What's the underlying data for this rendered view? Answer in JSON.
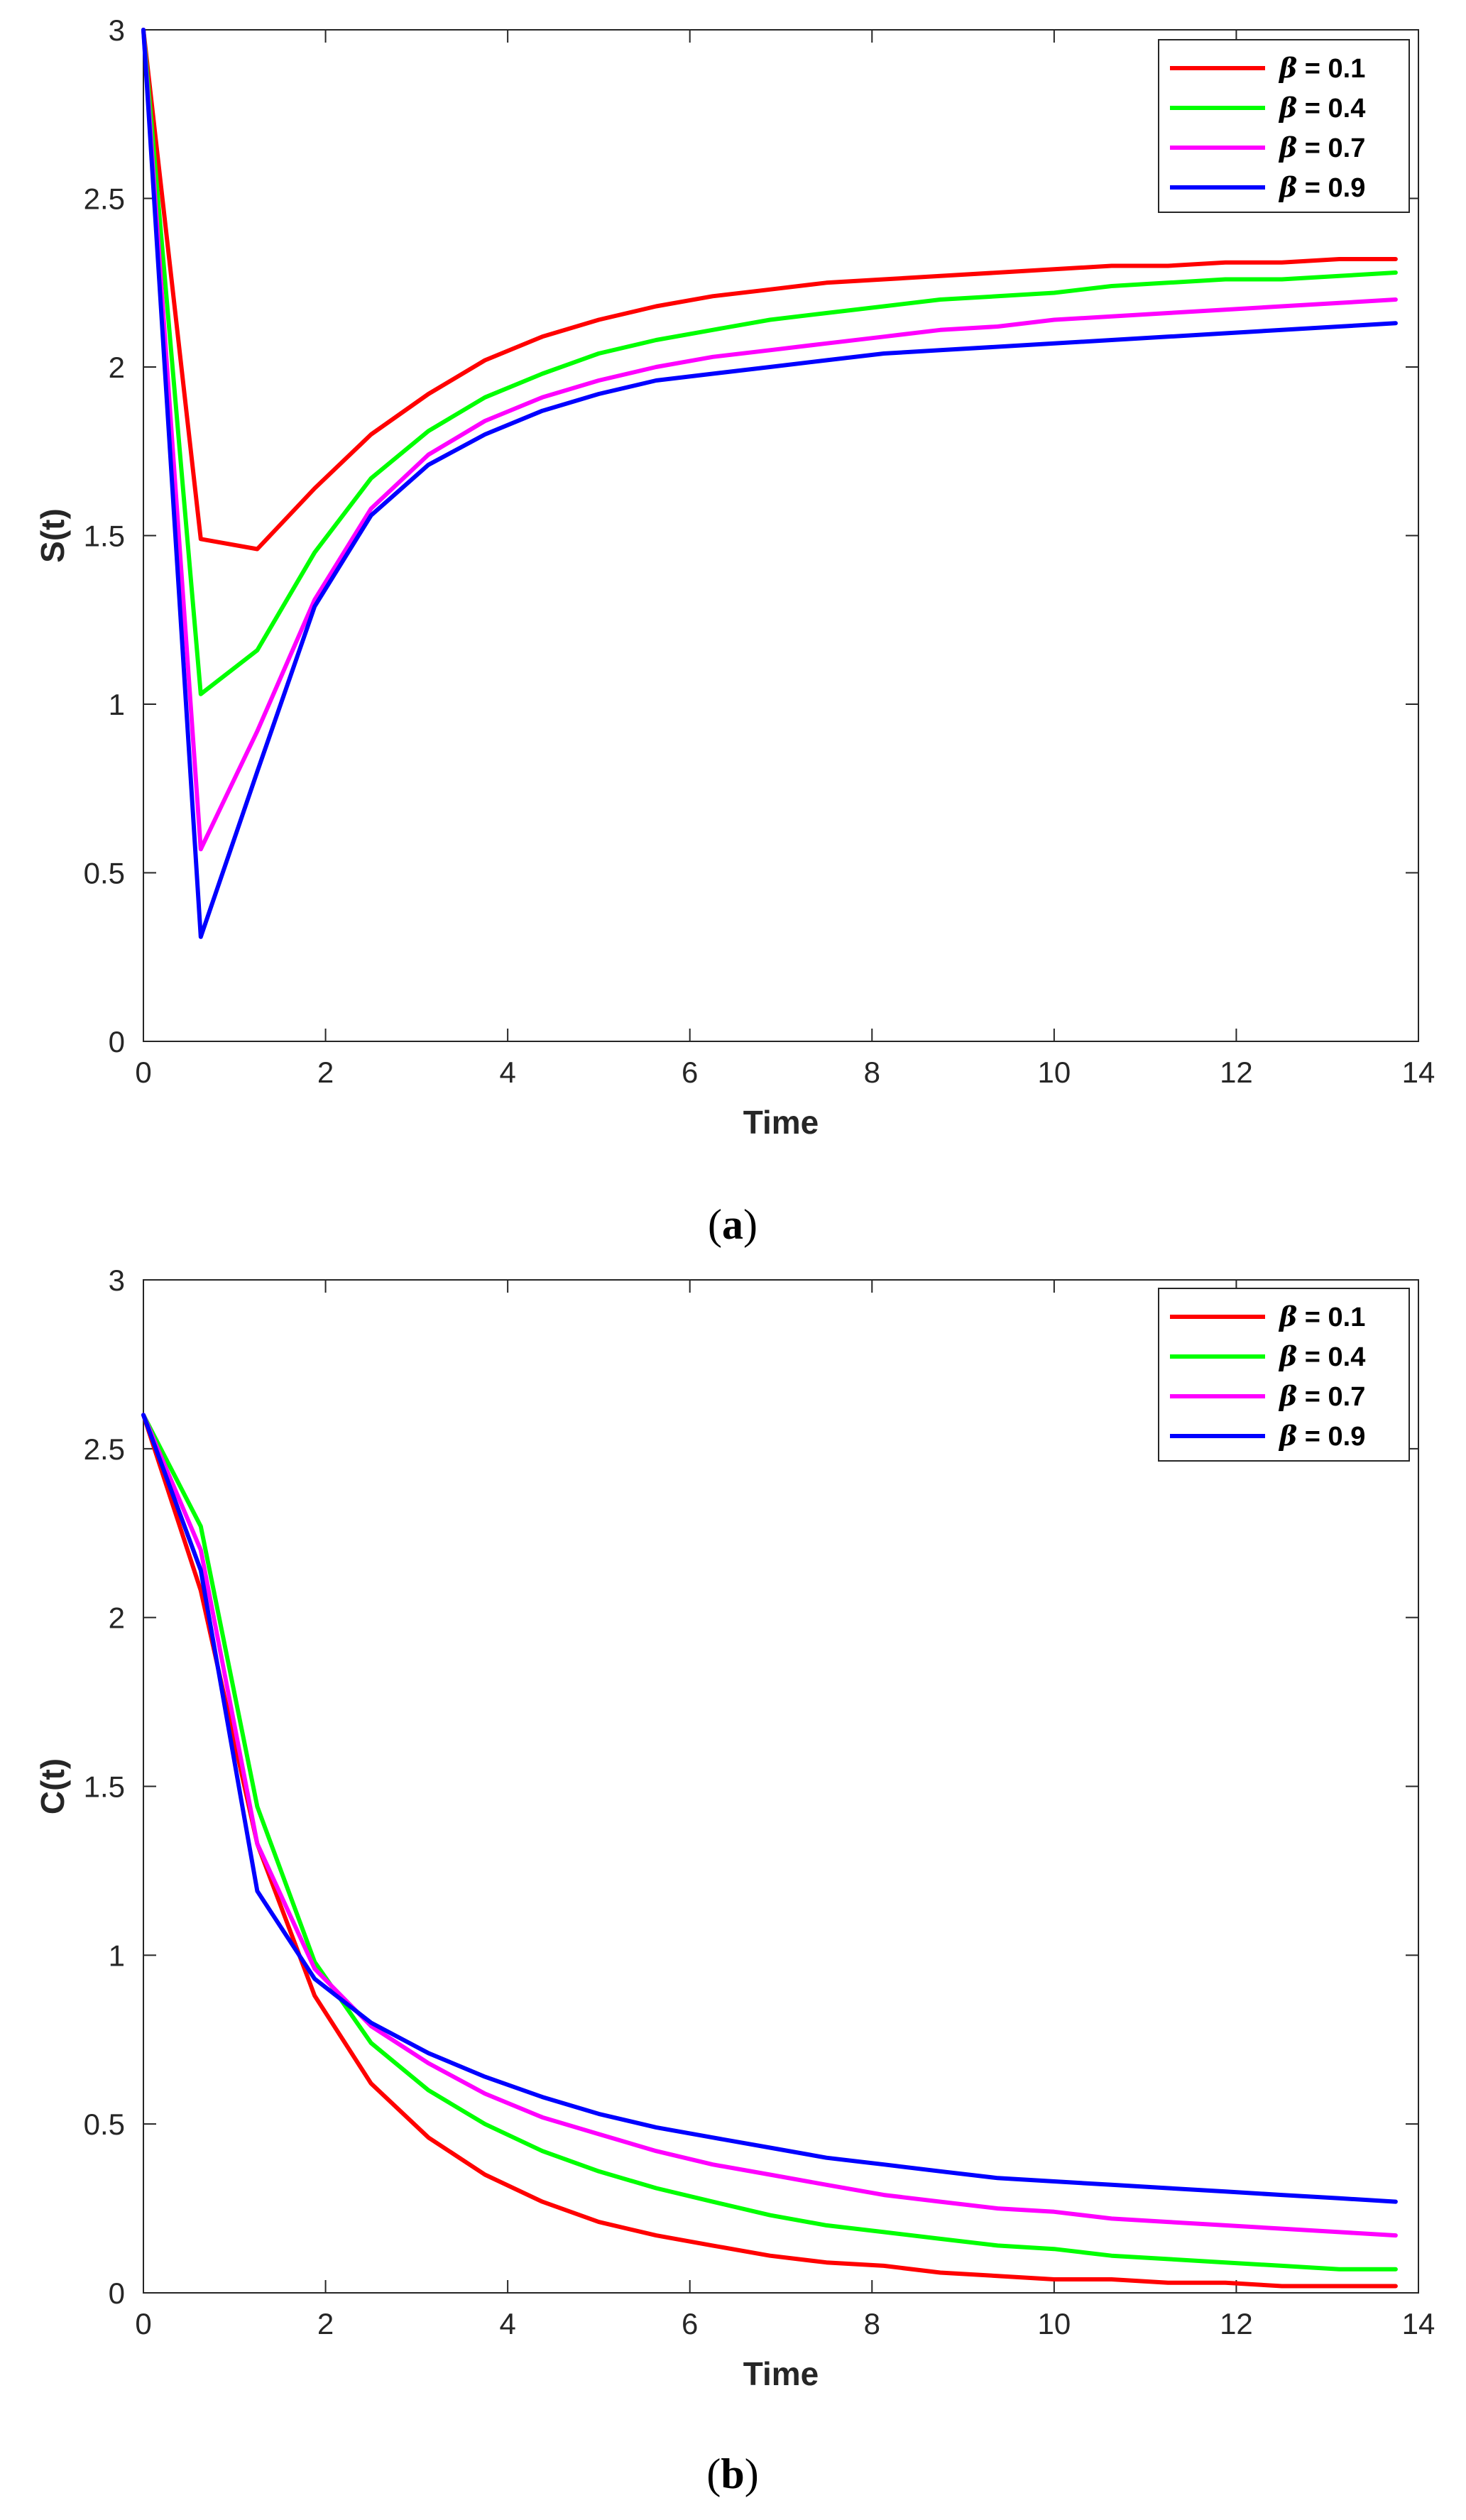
{
  "figure": {
    "captions": [
      {
        "open": "(",
        "letter": "a",
        "close": ")"
      },
      {
        "open": "(",
        "letter": "b",
        "close": ")"
      }
    ]
  },
  "chart_data": [
    {
      "type": "line",
      "panel": "a",
      "title": "",
      "xlabel": "Time",
      "ylabel": "S(t)",
      "xlim": [
        0,
        14
      ],
      "ylim": [
        0,
        3
      ],
      "xticks": [
        0,
        2,
        4,
        6,
        8,
        10,
        12,
        14
      ],
      "yticks": [
        0,
        0.5,
        1,
        1.5,
        2,
        2.5,
        3
      ],
      "xtick_labels": [
        "0",
        "2",
        "4",
        "6",
        "8",
        "10",
        "12",
        "14"
      ],
      "ytick_labels": [
        "0",
        "0.5",
        "1",
        "1.5",
        "2",
        "2.5",
        "3"
      ],
      "grid": false,
      "legend_position": "top-right",
      "x": [
        0,
        0.63,
        1.25,
        1.88,
        2.5,
        3.13,
        3.75,
        4.38,
        5.0,
        5.63,
        6.25,
        6.88,
        7.5,
        8.13,
        8.75,
        9.38,
        10.0,
        10.63,
        11.25,
        11.88,
        12.5,
        13.13,
        13.75
      ],
      "series": [
        {
          "name": "= 0.1",
          "symbol": "β",
          "color": "#ff0000",
          "values": [
            3.0,
            1.49,
            1.46,
            1.64,
            1.8,
            1.92,
            2.02,
            2.09,
            2.14,
            2.18,
            2.21,
            2.23,
            2.25,
            2.26,
            2.27,
            2.28,
            2.29,
            2.3,
            2.3,
            2.31,
            2.31,
            2.32,
            2.32
          ]
        },
        {
          "name": "= 0.4",
          "symbol": "β",
          "color": "#00ff00",
          "values": [
            3.0,
            1.03,
            1.16,
            1.45,
            1.67,
            1.81,
            1.91,
            1.98,
            2.04,
            2.08,
            2.11,
            2.14,
            2.16,
            2.18,
            2.2,
            2.21,
            2.22,
            2.24,
            2.25,
            2.26,
            2.26,
            2.27,
            2.28
          ]
        },
        {
          "name": "= 0.7",
          "symbol": "β",
          "color": "#ff00ff",
          "values": [
            3.0,
            0.57,
            0.92,
            1.31,
            1.58,
            1.74,
            1.84,
            1.91,
            1.96,
            2.0,
            2.03,
            2.05,
            2.07,
            2.09,
            2.11,
            2.12,
            2.14,
            2.15,
            2.16,
            2.17,
            2.18,
            2.19,
            2.2
          ]
        },
        {
          "name": "= 0.9",
          "symbol": "β",
          "color": "#0000ff",
          "values": [
            3.0,
            0.31,
            0.8,
            1.29,
            1.56,
            1.71,
            1.8,
            1.87,
            1.92,
            1.96,
            1.98,
            2.0,
            2.02,
            2.04,
            2.05,
            2.06,
            2.07,
            2.08,
            2.09,
            2.1,
            2.11,
            2.12,
            2.13
          ]
        }
      ]
    },
    {
      "type": "line",
      "panel": "b",
      "title": "",
      "xlabel": "Time",
      "ylabel": "C(t)",
      "xlim": [
        0,
        14
      ],
      "ylim": [
        0,
        3
      ],
      "xticks": [
        0,
        2,
        4,
        6,
        8,
        10,
        12,
        14
      ],
      "yticks": [
        0,
        0.5,
        1,
        1.5,
        2,
        2.5,
        3
      ],
      "xtick_labels": [
        "0",
        "2",
        "4",
        "6",
        "8",
        "10",
        "12",
        "14"
      ],
      "ytick_labels": [
        "0",
        "0.5",
        "1",
        "1.5",
        "2",
        "2.5",
        "3"
      ],
      "grid": false,
      "legend_position": "top-right",
      "x": [
        0,
        0.63,
        1.25,
        1.88,
        2.5,
        3.13,
        3.75,
        4.38,
        5.0,
        5.63,
        6.25,
        6.88,
        7.5,
        8.13,
        8.75,
        9.38,
        10.0,
        10.63,
        11.25,
        11.88,
        12.5,
        13.13,
        13.75
      ],
      "series": [
        {
          "name": "= 0.1",
          "symbol": "β",
          "color": "#ff0000",
          "values": [
            2.6,
            2.08,
            1.33,
            0.88,
            0.62,
            0.46,
            0.35,
            0.27,
            0.21,
            0.17,
            0.14,
            0.11,
            0.09,
            0.08,
            0.06,
            0.05,
            0.04,
            0.04,
            0.03,
            0.03,
            0.02,
            0.02,
            0.02
          ]
        },
        {
          "name": "= 0.4",
          "symbol": "β",
          "color": "#00ff00",
          "values": [
            2.6,
            2.27,
            1.44,
            0.98,
            0.74,
            0.6,
            0.5,
            0.42,
            0.36,
            0.31,
            0.27,
            0.23,
            0.2,
            0.18,
            0.16,
            0.14,
            0.13,
            0.11,
            0.1,
            0.09,
            0.08,
            0.07,
            0.07
          ]
        },
        {
          "name": "= 0.7",
          "symbol": "β",
          "color": "#ff00ff",
          "values": [
            2.6,
            2.2,
            1.33,
            0.96,
            0.79,
            0.68,
            0.59,
            0.52,
            0.47,
            0.42,
            0.38,
            0.35,
            0.32,
            0.29,
            0.27,
            0.25,
            0.24,
            0.22,
            0.21,
            0.2,
            0.19,
            0.18,
            0.17
          ]
        },
        {
          "name": "= 0.9",
          "symbol": "β",
          "color": "#0000ff",
          "values": [
            2.6,
            2.14,
            1.19,
            0.93,
            0.8,
            0.71,
            0.64,
            0.58,
            0.53,
            0.49,
            0.46,
            0.43,
            0.4,
            0.38,
            0.36,
            0.34,
            0.33,
            0.32,
            0.31,
            0.3,
            0.29,
            0.28,
            0.27
          ]
        }
      ]
    }
  ]
}
